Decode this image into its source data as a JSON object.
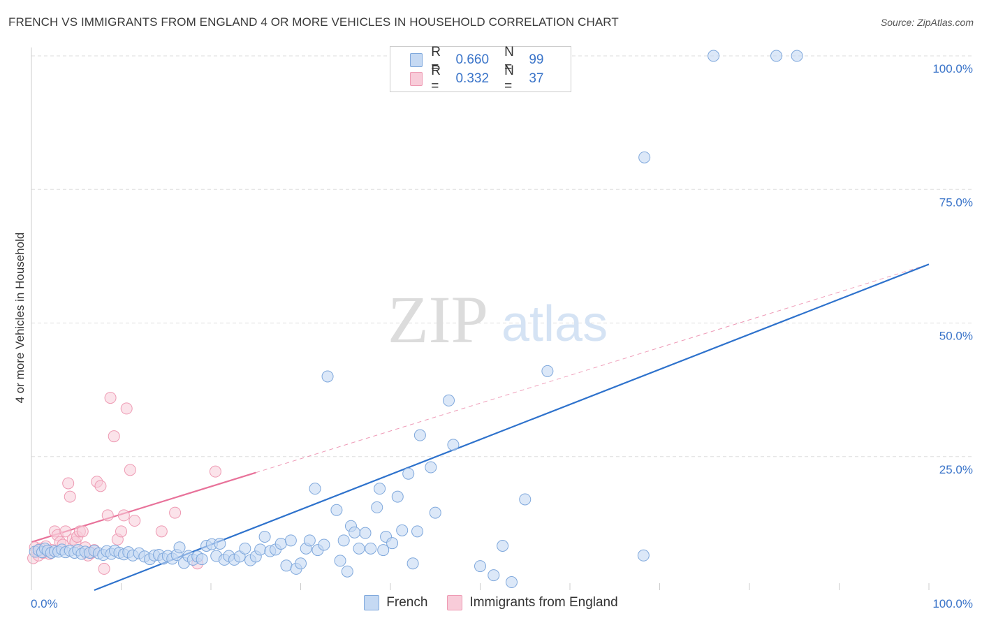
{
  "title": "FRENCH VS IMMIGRANTS FROM ENGLAND 4 OR MORE VEHICLES IN HOUSEHOLD CORRELATION CHART",
  "source": "Source: ZipAtlas.com",
  "watermark": {
    "zip": "ZIP",
    "atlas": "atlas"
  },
  "legend": {
    "rows": [
      {
        "r_label": "R =",
        "r_value": "0.660",
        "n_label": "N =",
        "n_value": "99"
      },
      {
        "r_label": "R =",
        "r_value": "0.332",
        "n_label": "N =",
        "n_value": "37"
      }
    ]
  },
  "colors": {
    "french_fill": "#c5d9f3",
    "french_stroke": "#7fa8dc",
    "french_line": "#2e72cc",
    "england_fill": "#f8ccd9",
    "england_stroke": "#ee9ab3",
    "england_line": "#e8729a",
    "axis_text": "#3a74c9",
    "grid": "#dddddd"
  },
  "chart_data": {
    "type": "scatter",
    "title": "FRENCH VS IMMIGRANTS FROM ENGLAND 4 OR MORE VEHICLES IN HOUSEHOLD CORRELATION CHART",
    "xlabel": "",
    "ylabel": "4 or more Vehicles in Household",
    "xlim": [
      0,
      100
    ],
    "ylim": [
      0,
      100
    ],
    "x_tick_labels": [
      "0.0%",
      "100.0%"
    ],
    "y_tick_labels": [
      "100.0%",
      "75.0%",
      "50.0%",
      "25.0%"
    ],
    "y_ticks": [
      100,
      75,
      50,
      25
    ],
    "grid": true,
    "legend_position": "top-center",
    "series": [
      {
        "name": "French",
        "trend": {
          "x0": 7,
          "y0": 0,
          "x1": 100,
          "y1": 61
        },
        "points": [
          [
            0.4,
            7.2
          ],
          [
            0.8,
            7.5
          ],
          [
            1.2,
            7.1
          ],
          [
            1.5,
            7.8
          ],
          [
            1.8,
            7.4
          ],
          [
            2.2,
            7.0
          ],
          [
            2.6,
            7.3
          ],
          [
            3.0,
            7.2
          ],
          [
            3.4,
            7.6
          ],
          [
            3.8,
            7.1
          ],
          [
            4.3,
            7.4
          ],
          [
            4.8,
            7.0
          ],
          [
            5.2,
            7.5
          ],
          [
            5.6,
            6.8
          ],
          [
            6.0,
            7.2
          ],
          [
            6.5,
            7.0
          ],
          [
            7.0,
            7.4
          ],
          [
            7.5,
            6.9
          ],
          [
            8.0,
            6.6
          ],
          [
            8.4,
            7.3
          ],
          [
            8.9,
            6.8
          ],
          [
            9.3,
            7.4
          ],
          [
            9.8,
            7.0
          ],
          [
            10.3,
            6.7
          ],
          [
            10.8,
            7.1
          ],
          [
            11.3,
            6.5
          ],
          [
            12.0,
            6.9
          ],
          [
            12.6,
            6.3
          ],
          [
            13.2,
            5.8
          ],
          [
            13.7,
            6.5
          ],
          [
            14.2,
            6.6
          ],
          [
            14.7,
            5.9
          ],
          [
            15.2,
            6.4
          ],
          [
            15.7,
            5.9
          ],
          [
            16.2,
            6.6
          ],
          [
            16.5,
            8.0
          ],
          [
            17.0,
            5.1
          ],
          [
            17.5,
            6.4
          ],
          [
            18.0,
            5.7
          ],
          [
            18.5,
            6.3
          ],
          [
            19.0,
            5.8
          ],
          [
            19.5,
            8.3
          ],
          [
            20.1,
            8.6
          ],
          [
            20.6,
            6.4
          ],
          [
            21.0,
            8.7
          ],
          [
            21.5,
            5.7
          ],
          [
            22.0,
            6.4
          ],
          [
            22.6,
            5.7
          ],
          [
            23.2,
            6.3
          ],
          [
            23.8,
            7.8
          ],
          [
            24.4,
            5.6
          ],
          [
            25.0,
            6.3
          ],
          [
            25.5,
            7.6
          ],
          [
            26.0,
            10.0
          ],
          [
            26.6,
            7.3
          ],
          [
            27.2,
            7.6
          ],
          [
            27.8,
            8.7
          ],
          [
            28.4,
            4.6
          ],
          [
            28.9,
            9.3
          ],
          [
            29.5,
            4.0
          ],
          [
            30.0,
            5.0
          ],
          [
            30.6,
            7.8
          ],
          [
            31.0,
            9.3
          ],
          [
            31.6,
            19.0
          ],
          [
            31.9,
            7.5
          ],
          [
            32.6,
            8.5
          ],
          [
            33.0,
            40.0
          ],
          [
            34.0,
            15.0
          ],
          [
            34.4,
            5.5
          ],
          [
            34.8,
            9.3
          ],
          [
            35.2,
            3.5
          ],
          [
            35.6,
            12.0
          ],
          [
            36.0,
            10.8
          ],
          [
            36.5,
            7.8
          ],
          [
            37.2,
            10.7
          ],
          [
            37.8,
            7.8
          ],
          [
            38.5,
            15.5
          ],
          [
            38.8,
            19.0
          ],
          [
            39.2,
            7.5
          ],
          [
            39.5,
            10.0
          ],
          [
            40.2,
            8.8
          ],
          [
            40.8,
            17.5
          ],
          [
            41.3,
            11.2
          ],
          [
            42.0,
            21.8
          ],
          [
            42.5,
            5.0
          ],
          [
            43.0,
            11.0
          ],
          [
            43.3,
            29.0
          ],
          [
            44.5,
            23.0
          ],
          [
            45.0,
            14.5
          ],
          [
            46.5,
            35.5
          ],
          [
            47.0,
            27.2
          ],
          [
            50.0,
            4.5
          ],
          [
            51.5,
            2.8
          ],
          [
            52.5,
            8.3
          ],
          [
            53.5,
            1.5
          ],
          [
            55.0,
            17.0
          ],
          [
            57.5,
            41.0
          ],
          [
            68.2,
            6.5
          ],
          [
            68.3,
            81.0
          ],
          [
            76.0,
            100.0
          ],
          [
            83.0,
            100.0
          ],
          [
            85.3,
            100.0
          ]
        ]
      },
      {
        "name": "Immigrants from England",
        "trend": {
          "x0": 0,
          "y0": 9,
          "x1": 25,
          "y1": 22
        },
        "trend_dashed": {
          "x0": 25,
          "y0": 22,
          "x1": 100,
          "y1": 61
        },
        "points": [
          [
            0.2,
            6.0
          ],
          [
            0.4,
            8.0
          ],
          [
            0.6,
            7.2
          ],
          [
            0.8,
            6.5
          ],
          [
            1.0,
            7.8
          ],
          [
            1.3,
            7.0
          ],
          [
            1.6,
            8.2
          ],
          [
            2.0,
            6.8
          ],
          [
            2.3,
            7.5
          ],
          [
            2.6,
            11.0
          ],
          [
            2.9,
            10.3
          ],
          [
            3.2,
            9.0
          ],
          [
            3.5,
            8.5
          ],
          [
            3.8,
            11.0
          ],
          [
            4.1,
            20.0
          ],
          [
            4.3,
            17.5
          ],
          [
            4.6,
            9.5
          ],
          [
            4.9,
            9.0
          ],
          [
            5.1,
            10.0
          ],
          [
            5.4,
            11.0
          ],
          [
            5.7,
            11.0
          ],
          [
            6.0,
            8.0
          ],
          [
            6.3,
            6.5
          ],
          [
            6.7,
            7.0
          ],
          [
            7.0,
            7.5
          ],
          [
            7.3,
            20.3
          ],
          [
            7.7,
            19.5
          ],
          [
            8.1,
            4.0
          ],
          [
            8.5,
            14.0
          ],
          [
            8.8,
            36.0
          ],
          [
            9.2,
            28.8
          ],
          [
            9.6,
            9.5
          ],
          [
            10.0,
            11.0
          ],
          [
            10.3,
            14.0
          ],
          [
            10.6,
            34.0
          ],
          [
            11.0,
            22.5
          ],
          [
            11.5,
            13.0
          ],
          [
            14.5,
            11.0
          ],
          [
            16.0,
            14.5
          ],
          [
            18.5,
            5.0
          ],
          [
            20.5,
            22.2
          ]
        ]
      }
    ]
  },
  "bottom_legend": {
    "items": [
      {
        "label": "French"
      },
      {
        "label": "Immigrants from England"
      }
    ]
  }
}
